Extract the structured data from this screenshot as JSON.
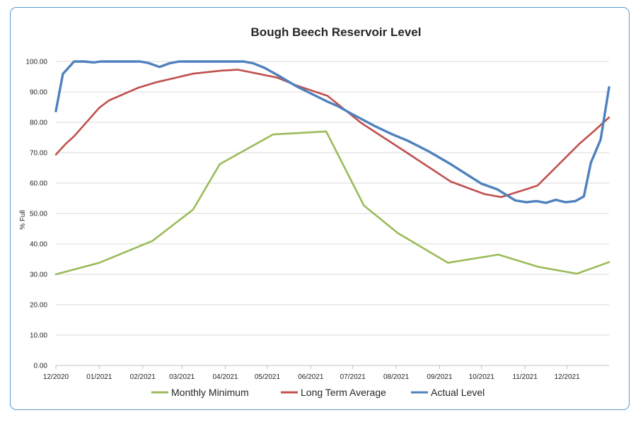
{
  "chart_data": {
    "type": "line",
    "title": "Bough Beech Reservoir Level",
    "xlabel": "",
    "ylabel": "% Full",
    "ylim": [
      0,
      100
    ],
    "yticks": [
      "0.00",
      "10.00",
      "20.00",
      "30.00",
      "40.00",
      "50.00",
      "60.00",
      "70.00",
      "80.00",
      "90.00",
      "100.00"
    ],
    "xlim": [
      "2020-12-01",
      "2021-12-31"
    ],
    "xticks": [
      {
        "label": "12/2020",
        "date": "2020-12-01"
      },
      {
        "label": "01/2021",
        "date": "2021-01-01"
      },
      {
        "label": "02/2021",
        "date": "2021-02-01"
      },
      {
        "label": "03/2021",
        "date": "2021-03-01"
      },
      {
        "label": "04/2021",
        "date": "2021-04-01"
      },
      {
        "label": "05/2021",
        "date": "2021-05-01"
      },
      {
        "label": "06/2021",
        "date": "2021-06-01"
      },
      {
        "label": "07/2021",
        "date": "2021-07-01"
      },
      {
        "label": "08/2021",
        "date": "2021-08-01"
      },
      {
        "label": "09/2021",
        "date": "2021-09-01"
      },
      {
        "label": "10/2021",
        "date": "2021-10-01"
      },
      {
        "label": "11/2021",
        "date": "2021-11-01"
      },
      {
        "label": "12/2021",
        "date": "2021-12-01"
      }
    ],
    "grid": true,
    "legend_position": "bottom",
    "series": [
      {
        "name": "Monthly Minimum",
        "color": "#9bbb59",
        "points": [
          [
            "2020-12-01",
            30.0
          ],
          [
            "2021-01-01",
            33.8
          ],
          [
            "2021-02-08",
            41.0
          ],
          [
            "2021-03-09",
            51.3
          ],
          [
            "2021-03-28",
            66.2
          ],
          [
            "2021-05-05",
            76.0
          ],
          [
            "2021-06-12",
            77.0
          ],
          [
            "2021-07-09",
            52.6
          ],
          [
            "2021-08-02",
            43.6
          ],
          [
            "2021-09-07",
            33.8
          ],
          [
            "2021-10-13",
            36.5
          ],
          [
            "2021-11-11",
            32.4
          ],
          [
            "2021-12-08",
            30.2
          ],
          [
            "2021-12-31",
            34.0
          ]
        ]
      },
      {
        "name": "Long Term Average",
        "color": "#c0504d",
        "points": [
          [
            "2020-12-01",
            69.4
          ],
          [
            "2020-12-08",
            72.9
          ],
          [
            "2020-12-14",
            75.4
          ],
          [
            "2021-01-01",
            84.8
          ],
          [
            "2021-01-08",
            87.2
          ],
          [
            "2021-01-29",
            91.4
          ],
          [
            "2021-02-10",
            93.1
          ],
          [
            "2021-03-09",
            96.0
          ],
          [
            "2021-03-29",
            97.0
          ],
          [
            "2021-04-10",
            97.3
          ],
          [
            "2021-04-22",
            96.2
          ],
          [
            "2021-05-08",
            94.7
          ],
          [
            "2021-05-22",
            92.1
          ],
          [
            "2021-06-13",
            88.7
          ],
          [
            "2021-07-07",
            79.8
          ],
          [
            "2021-08-07",
            70.5
          ],
          [
            "2021-09-09",
            60.5
          ],
          [
            "2021-10-03",
            56.4
          ],
          [
            "2021-10-15",
            55.4
          ],
          [
            "2021-11-02",
            58.0
          ],
          [
            "2021-11-10",
            59.2
          ],
          [
            "2021-12-10",
            73.0
          ],
          [
            "2021-12-19",
            76.6
          ],
          [
            "2021-12-31",
            81.6
          ]
        ]
      },
      {
        "name": "Actual Level",
        "color": "#4f81bd",
        "points": [
          [
            "2020-12-01",
            83.7
          ],
          [
            "2020-12-06",
            95.9
          ],
          [
            "2020-12-14",
            100.0
          ],
          [
            "2020-12-21",
            100.0
          ],
          [
            "2020-12-28",
            99.7
          ],
          [
            "2021-01-02",
            100.0
          ],
          [
            "2021-01-30",
            100.0
          ],
          [
            "2021-02-05",
            99.5
          ],
          [
            "2021-02-13",
            98.2
          ],
          [
            "2021-02-20",
            99.4
          ],
          [
            "2021-02-27",
            100.0
          ],
          [
            "2021-04-14",
            100.0
          ],
          [
            "2021-04-21",
            99.4
          ],
          [
            "2021-04-29",
            97.9
          ],
          [
            "2021-05-08",
            95.6
          ],
          [
            "2021-05-22",
            91.8
          ],
          [
            "2021-06-12",
            87.0
          ],
          [
            "2021-06-20",
            85.4
          ],
          [
            "2021-06-29",
            83.1
          ],
          [
            "2021-07-17",
            78.7
          ],
          [
            "2021-07-29",
            76.1
          ],
          [
            "2021-08-09",
            74.0
          ],
          [
            "2021-08-24",
            70.5
          ],
          [
            "2021-09-08",
            66.5
          ],
          [
            "2021-09-22",
            62.4
          ],
          [
            "2021-10-01",
            59.8
          ],
          [
            "2021-10-12",
            58.0
          ],
          [
            "2021-10-25",
            54.3
          ],
          [
            "2021-11-02",
            53.7
          ],
          [
            "2021-11-09",
            54.1
          ],
          [
            "2021-11-16",
            53.5
          ],
          [
            "2021-11-23",
            54.5
          ],
          [
            "2021-11-30",
            53.7
          ],
          [
            "2021-12-07",
            54.1
          ],
          [
            "2021-12-13",
            55.6
          ],
          [
            "2021-12-18",
            66.7
          ],
          [
            "2021-12-25",
            74.3
          ],
          [
            "2021-12-31",
            91.5
          ]
        ]
      }
    ]
  }
}
